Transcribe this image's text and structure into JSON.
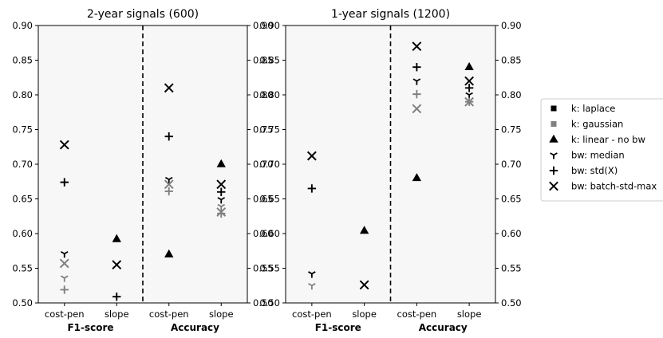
{
  "chart_data": {
    "type": "scatter",
    "ylim": [
      0.5,
      0.9
    ],
    "yticks": [
      "0.50",
      "0.55",
      "0.60",
      "0.65",
      "0.70",
      "0.75",
      "0.80",
      "0.85",
      "0.90"
    ],
    "legend_position": "right",
    "colors": {
      "black": "#000000",
      "gray": "#808080",
      "panel_bg": "#f7f7f7"
    },
    "legend": [
      {
        "label": "k: laplace",
        "marker": "square",
        "color": "#000000"
      },
      {
        "label": "k: gaussian",
        "marker": "square",
        "color": "#808080"
      },
      {
        "label": "k: linear - no bw",
        "marker": "triangle",
        "color": "#000000"
      },
      {
        "label": "bw: median",
        "marker": "tri_down",
        "color": "#000000"
      },
      {
        "label": "bw: std(X)",
        "marker": "plus",
        "color": "#000000"
      },
      {
        "label": "bw: batch-std-max",
        "marker": "x",
        "color": "#000000"
      }
    ],
    "panels": [
      {
        "title": "2-year signals (600)",
        "categories": [
          "cost-pen",
          "slope",
          "cost-pen",
          "slope"
        ],
        "groups": [
          "F1-score",
          "Accuracy"
        ],
        "points": [
          {
            "cat": 0,
            "y": 0.728,
            "marker": "x",
            "color": "#000000"
          },
          {
            "cat": 0,
            "y": 0.674,
            "marker": "plus",
            "color": "#000000"
          },
          {
            "cat": 0,
            "y": 0.571,
            "marker": "tri_down",
            "color": "#000000"
          },
          {
            "cat": 0,
            "y": 0.557,
            "marker": "x",
            "color": "#808080"
          },
          {
            "cat": 0,
            "y": 0.536,
            "marker": "tri_down",
            "color": "#808080"
          },
          {
            "cat": 0,
            "y": 0.519,
            "marker": "plus",
            "color": "#808080"
          },
          {
            "cat": 1,
            "y": 0.592,
            "marker": "triangle",
            "color": "#000000"
          },
          {
            "cat": 1,
            "y": 0.555,
            "marker": "x",
            "color": "#000000"
          },
          {
            "cat": 1,
            "y": 0.509,
            "marker": "plus",
            "color": "#000000"
          },
          {
            "cat": 2,
            "y": 0.81,
            "marker": "x",
            "color": "#000000"
          },
          {
            "cat": 2,
            "y": 0.74,
            "marker": "plus",
            "color": "#000000"
          },
          {
            "cat": 2,
            "y": 0.678,
            "marker": "tri_down",
            "color": "#000000"
          },
          {
            "cat": 2,
            "y": 0.671,
            "marker": "x",
            "color": "#808080"
          },
          {
            "cat": 2,
            "y": 0.661,
            "marker": "plus",
            "color": "#808080"
          },
          {
            "cat": 2,
            "y": 0.57,
            "marker": "triangle",
            "color": "#000000"
          },
          {
            "cat": 3,
            "y": 0.7,
            "marker": "triangle",
            "color": "#000000"
          },
          {
            "cat": 3,
            "y": 0.671,
            "marker": "x",
            "color": "#000000"
          },
          {
            "cat": 3,
            "y": 0.66,
            "marker": "plus",
            "color": "#000000"
          },
          {
            "cat": 3,
            "y": 0.649,
            "marker": "tri_down",
            "color": "#000000"
          },
          {
            "cat": 3,
            "y": 0.639,
            "marker": "tri_down",
            "color": "#808080"
          },
          {
            "cat": 3,
            "y": 0.631,
            "marker": "x",
            "color": "#808080"
          },
          {
            "cat": 3,
            "y": 0.629,
            "marker": "plus",
            "color": "#808080"
          }
        ]
      },
      {
        "title": "1-year signals (1200)",
        "categories": [
          "cost-pen",
          "slope",
          "cost-pen",
          "slope"
        ],
        "groups": [
          "F1-score",
          "Accuracy"
        ],
        "points": [
          {
            "cat": 0,
            "y": 0.712,
            "marker": "x",
            "color": "#000000"
          },
          {
            "cat": 0,
            "y": 0.665,
            "marker": "plus",
            "color": "#000000"
          },
          {
            "cat": 0,
            "y": 0.542,
            "marker": "tri_down",
            "color": "#000000"
          },
          {
            "cat": 0,
            "y": 0.525,
            "marker": "tri_down",
            "color": "#808080"
          },
          {
            "cat": 1,
            "y": 0.604,
            "marker": "triangle",
            "color": "#000000"
          },
          {
            "cat": 1,
            "y": 0.526,
            "marker": "x",
            "color": "#000000"
          },
          {
            "cat": 2,
            "y": 0.87,
            "marker": "x",
            "color": "#000000"
          },
          {
            "cat": 2,
            "y": 0.84,
            "marker": "plus",
            "color": "#000000"
          },
          {
            "cat": 2,
            "y": 0.82,
            "marker": "tri_down",
            "color": "#000000"
          },
          {
            "cat": 2,
            "y": 0.801,
            "marker": "plus",
            "color": "#808080"
          },
          {
            "cat": 2,
            "y": 0.78,
            "marker": "x",
            "color": "#808080"
          },
          {
            "cat": 2,
            "y": 0.68,
            "marker": "triangle",
            "color": "#000000"
          },
          {
            "cat": 3,
            "y": 0.84,
            "marker": "triangle",
            "color": "#000000"
          },
          {
            "cat": 3,
            "y": 0.82,
            "marker": "x",
            "color": "#000000"
          },
          {
            "cat": 3,
            "y": 0.81,
            "marker": "plus",
            "color": "#000000"
          },
          {
            "cat": 3,
            "y": 0.8,
            "marker": "tri_down",
            "color": "#000000"
          },
          {
            "cat": 3,
            "y": 0.79,
            "marker": "x",
            "color": "#808080"
          },
          {
            "cat": 3,
            "y": 0.79,
            "marker": "plus",
            "color": "#808080"
          }
        ]
      }
    ]
  }
}
